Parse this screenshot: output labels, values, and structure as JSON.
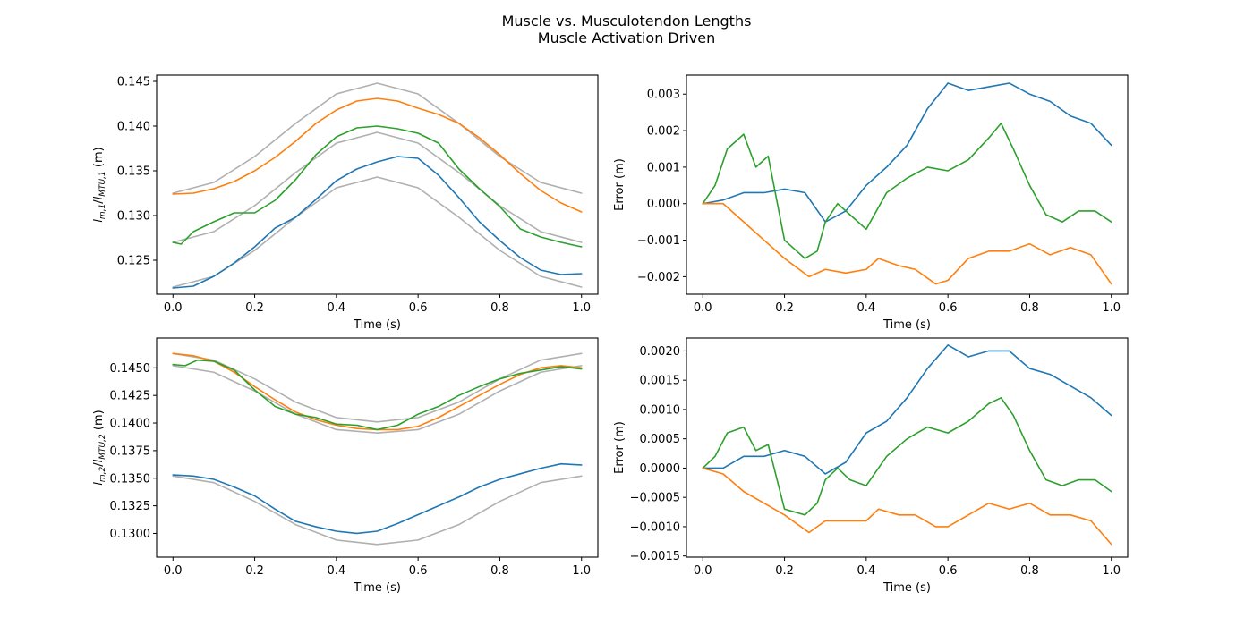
{
  "figure": {
    "title_line1": "Muscle vs. Musculotendon Lengths",
    "title_line2": "Muscle Activation Driven"
  },
  "colors": {
    "blue": "#1f77b4",
    "orange": "#ff7f0e",
    "green": "#2ca02c",
    "gray": "#b0b0b0"
  },
  "chart_data": [
    {
      "id": "len1",
      "type": "line",
      "xlabel": "Time (s)",
      "ylabel": "l_{m,1}/l_{MTU,1} (m)",
      "xlim": [
        -0.04,
        1.04
      ],
      "ylim": [
        0.1212,
        0.1457
      ],
      "xticks": [
        0.0,
        0.2,
        0.4,
        0.6,
        0.8,
        1.0
      ],
      "yticks": [
        0.125,
        0.13,
        0.135,
        0.14,
        0.145
      ],
      "ytick_decimals": 3,
      "grid": false,
      "series": [
        {
          "color": "gray",
          "x": [
            0.0,
            0.1,
            0.2,
            0.3,
            0.4,
            0.5,
            0.6,
            0.7,
            0.8,
            0.9,
            1.0
          ],
          "y": [
            0.1325,
            0.1337,
            0.1366,
            0.1403,
            0.1436,
            0.1448,
            0.1436,
            0.1403,
            0.1366,
            0.1337,
            0.1325
          ]
        },
        {
          "color": "gray",
          "x": [
            0.0,
            0.1,
            0.2,
            0.3,
            0.4,
            0.5,
            0.6,
            0.7,
            0.8,
            0.9,
            1.0
          ],
          "y": [
            0.127,
            0.1282,
            0.1311,
            0.1348,
            0.1381,
            0.1393,
            0.1381,
            0.1348,
            0.1311,
            0.1282,
            0.127
          ]
        },
        {
          "color": "gray",
          "x": [
            0.0,
            0.1,
            0.2,
            0.3,
            0.4,
            0.5,
            0.6,
            0.7,
            0.8,
            0.9,
            1.0
          ],
          "y": [
            0.122,
            0.1232,
            0.1261,
            0.1298,
            0.1331,
            0.1343,
            0.1331,
            0.1298,
            0.1261,
            0.1232,
            0.122
          ]
        },
        {
          "color": "orange",
          "x": [
            0.0,
            0.05,
            0.1,
            0.15,
            0.2,
            0.25,
            0.3,
            0.35,
            0.4,
            0.45,
            0.5,
            0.55,
            0.6,
            0.65,
            0.7,
            0.75,
            0.8,
            0.85,
            0.9,
            0.95,
            1.0
          ],
          "y": [
            0.1324,
            0.1325,
            0.133,
            0.1338,
            0.135,
            0.1365,
            0.1383,
            0.1403,
            0.1418,
            0.1428,
            0.1431,
            0.1428,
            0.142,
            0.1413,
            0.1403,
            0.1387,
            0.1368,
            0.1347,
            0.1328,
            0.1314,
            0.1304
          ]
        },
        {
          "color": "green",
          "x": [
            0.0,
            0.02,
            0.05,
            0.1,
            0.15,
            0.2,
            0.25,
            0.3,
            0.35,
            0.4,
            0.45,
            0.5,
            0.55,
            0.6,
            0.65,
            0.7,
            0.75,
            0.8,
            0.85,
            0.9,
            0.95,
            1.0
          ],
          "y": [
            0.127,
            0.1268,
            0.1282,
            0.1293,
            0.1303,
            0.1303,
            0.1317,
            0.134,
            0.1368,
            0.1388,
            0.1398,
            0.14,
            0.1397,
            0.1392,
            0.1381,
            0.1352,
            0.133,
            0.131,
            0.1285,
            0.1276,
            0.127,
            0.1265
          ]
        },
        {
          "color": "blue",
          "x": [
            0.0,
            0.05,
            0.1,
            0.15,
            0.2,
            0.25,
            0.3,
            0.35,
            0.4,
            0.45,
            0.5,
            0.55,
            0.6,
            0.65,
            0.7,
            0.75,
            0.8,
            0.85,
            0.9,
            0.95,
            1.0
          ],
          "y": [
            0.1219,
            0.1221,
            0.1232,
            0.1247,
            0.1265,
            0.1286,
            0.1298,
            0.1318,
            0.1339,
            0.1352,
            0.136,
            0.1366,
            0.1364,
            0.1345,
            0.132,
            0.1293,
            0.1272,
            0.1253,
            0.1239,
            0.1234,
            0.1235
          ]
        }
      ]
    },
    {
      "id": "err1",
      "type": "line",
      "xlabel": "Time (s)",
      "ylabel": "Error (m)",
      "xlim": [
        -0.04,
        1.04
      ],
      "ylim": [
        -0.00248,
        0.00352
      ],
      "xticks": [
        0.0,
        0.2,
        0.4,
        0.6,
        0.8,
        1.0
      ],
      "yticks": [
        -0.002,
        -0.001,
        0.0,
        0.001,
        0.002,
        0.003
      ],
      "ytick_decimals": 3,
      "grid": false,
      "series": [
        {
          "color": "blue",
          "x": [
            0.0,
            0.05,
            0.1,
            0.15,
            0.2,
            0.25,
            0.3,
            0.35,
            0.4,
            0.45,
            0.5,
            0.55,
            0.6,
            0.65,
            0.7,
            0.75,
            0.8,
            0.85,
            0.9,
            0.95,
            1.0
          ],
          "y": [
            0.0,
            0.0001,
            0.0003,
            0.0003,
            0.0004,
            0.0003,
            -0.0005,
            -0.0002,
            0.0005,
            0.001,
            0.0016,
            0.0026,
            0.0033,
            0.0031,
            0.0032,
            0.0033,
            0.003,
            0.0028,
            0.0024,
            0.0022,
            0.0016
          ]
        },
        {
          "color": "green",
          "x": [
            0.0,
            0.03,
            0.06,
            0.1,
            0.13,
            0.16,
            0.2,
            0.25,
            0.28,
            0.3,
            0.33,
            0.36,
            0.4,
            0.45,
            0.5,
            0.55,
            0.6,
            0.65,
            0.7,
            0.73,
            0.76,
            0.8,
            0.84,
            0.88,
            0.92,
            0.96,
            1.0
          ],
          "y": [
            0.0,
            0.0005,
            0.0015,
            0.0019,
            0.001,
            0.0013,
            -0.001,
            -0.0015,
            -0.0013,
            -0.0005,
            0.0,
            -0.0003,
            -0.0007,
            0.0003,
            0.0007,
            0.001,
            0.0009,
            0.0012,
            0.0018,
            0.0022,
            0.0015,
            0.0005,
            -0.0003,
            -0.0005,
            -0.0002,
            -0.0002,
            -0.0005
          ]
        },
        {
          "color": "orange",
          "x": [
            0.0,
            0.05,
            0.1,
            0.15,
            0.2,
            0.26,
            0.3,
            0.35,
            0.4,
            0.43,
            0.48,
            0.52,
            0.57,
            0.6,
            0.65,
            0.7,
            0.75,
            0.8,
            0.85,
            0.9,
            0.95,
            1.0
          ],
          "y": [
            0.0,
            0.0,
            -0.0005,
            -0.001,
            -0.0015,
            -0.002,
            -0.0018,
            -0.0019,
            -0.0018,
            -0.0015,
            -0.0017,
            -0.0018,
            -0.0022,
            -0.0021,
            -0.0015,
            -0.0013,
            -0.0013,
            -0.0011,
            -0.0014,
            -0.0012,
            -0.0014,
            -0.0022
          ]
        }
      ]
    },
    {
      "id": "len2",
      "type": "line",
      "xlabel": "Time (s)",
      "ylabel": "l_{m,2}/l_{MTU,2} (m)",
      "xlim": [
        -0.04,
        1.04
      ],
      "ylim": [
        0.12785,
        0.1477
      ],
      "xticks": [
        0.0,
        0.2,
        0.4,
        0.6,
        0.8,
        1.0
      ],
      "yticks": [
        0.13,
        0.1325,
        0.135,
        0.1375,
        0.14,
        0.1425,
        0.145
      ],
      "ytick_decimals": 4,
      "grid": false,
      "series": [
        {
          "color": "gray",
          "x": [
            0.0,
            0.1,
            0.2,
            0.3,
            0.4,
            0.5,
            0.6,
            0.7,
            0.8,
            0.9,
            1.0
          ],
          "y": [
            0.1463,
            0.1457,
            0.144,
            0.1419,
            0.1405,
            0.1401,
            0.1405,
            0.1419,
            0.144,
            0.1457,
            0.1463
          ]
        },
        {
          "color": "gray",
          "x": [
            0.0,
            0.1,
            0.2,
            0.3,
            0.4,
            0.5,
            0.6,
            0.7,
            0.8,
            0.9,
            1.0
          ],
          "y": [
            0.1452,
            0.1446,
            0.1429,
            0.1408,
            0.1394,
            0.1391,
            0.1394,
            0.1408,
            0.1429,
            0.1446,
            0.1452
          ]
        },
        {
          "color": "gray",
          "x": [
            0.0,
            0.1,
            0.2,
            0.3,
            0.4,
            0.5,
            0.6,
            0.7,
            0.8,
            0.9,
            1.0
          ],
          "y": [
            0.1352,
            0.1346,
            0.1329,
            0.1308,
            0.1294,
            0.129,
            0.1294,
            0.1308,
            0.1329,
            0.1346,
            0.1352
          ]
        },
        {
          "color": "orange",
          "x": [
            0.0,
            0.05,
            0.1,
            0.15,
            0.2,
            0.25,
            0.3,
            0.35,
            0.4,
            0.45,
            0.5,
            0.55,
            0.6,
            0.65,
            0.7,
            0.75,
            0.8,
            0.85,
            0.9,
            0.95,
            1.0
          ],
          "y": [
            0.1463,
            0.1461,
            0.1456,
            0.1446,
            0.1433,
            0.1421,
            0.141,
            0.1403,
            0.1398,
            0.1395,
            0.1394,
            0.1394,
            0.1397,
            0.1405,
            0.1415,
            0.1425,
            0.1435,
            0.1444,
            0.145,
            0.1452,
            0.145
          ]
        },
        {
          "color": "green",
          "x": [
            0.0,
            0.03,
            0.06,
            0.1,
            0.15,
            0.2,
            0.25,
            0.3,
            0.35,
            0.4,
            0.45,
            0.5,
            0.55,
            0.6,
            0.65,
            0.7,
            0.75,
            0.8,
            0.85,
            0.9,
            0.95,
            1.0
          ],
          "y": [
            0.1453,
            0.1452,
            0.1457,
            0.1456,
            0.1448,
            0.143,
            0.1415,
            0.1408,
            0.1405,
            0.1399,
            0.1398,
            0.1394,
            0.1398,
            0.1408,
            0.1415,
            0.1425,
            0.1433,
            0.144,
            0.1445,
            0.1448,
            0.1451,
            0.1449
          ]
        },
        {
          "color": "blue",
          "x": [
            0.0,
            0.05,
            0.1,
            0.15,
            0.2,
            0.25,
            0.3,
            0.35,
            0.4,
            0.45,
            0.5,
            0.55,
            0.6,
            0.65,
            0.7,
            0.75,
            0.8,
            0.85,
            0.9,
            0.95,
            1.0
          ],
          "y": [
            0.1353,
            0.1352,
            0.1349,
            0.1342,
            0.1334,
            0.1322,
            0.1311,
            0.1306,
            0.1302,
            0.13,
            0.1302,
            0.1309,
            0.1317,
            0.1325,
            0.1333,
            0.1342,
            0.1349,
            0.1354,
            0.1359,
            0.1363,
            0.1362
          ]
        }
      ]
    },
    {
      "id": "err2",
      "type": "line",
      "xlabel": "Time (s)",
      "ylabel": "Error (m)",
      "xlim": [
        -0.04,
        1.04
      ],
      "ylim": [
        -0.00152,
        0.00222
      ],
      "xticks": [
        0.0,
        0.2,
        0.4,
        0.6,
        0.8,
        1.0
      ],
      "yticks": [
        -0.0015,
        -0.001,
        -0.0005,
        0.0,
        0.0005,
        0.001,
        0.0015,
        0.002
      ],
      "ytick_decimals": 4,
      "grid": false,
      "series": [
        {
          "color": "blue",
          "x": [
            0.0,
            0.05,
            0.1,
            0.15,
            0.2,
            0.25,
            0.3,
            0.35,
            0.4,
            0.45,
            0.5,
            0.55,
            0.6,
            0.65,
            0.7,
            0.75,
            0.8,
            0.85,
            0.9,
            0.95,
            1.0
          ],
          "y": [
            0.0,
            0.0,
            0.0002,
            0.0002,
            0.0003,
            0.0002,
            -0.0001,
            0.0001,
            0.0006,
            0.0008,
            0.0012,
            0.0017,
            0.0021,
            0.0019,
            0.002,
            0.002,
            0.0017,
            0.0016,
            0.0014,
            0.0012,
            0.0009
          ]
        },
        {
          "color": "green",
          "x": [
            0.0,
            0.03,
            0.06,
            0.1,
            0.13,
            0.16,
            0.2,
            0.25,
            0.28,
            0.3,
            0.33,
            0.36,
            0.4,
            0.45,
            0.5,
            0.55,
            0.6,
            0.65,
            0.7,
            0.73,
            0.76,
            0.8,
            0.84,
            0.88,
            0.92,
            0.96,
            1.0
          ],
          "y": [
            0.0,
            0.0002,
            0.0006,
            0.0007,
            0.0003,
            0.0004,
            -0.0007,
            -0.0008,
            -0.0006,
            -0.0002,
            0.0,
            -0.0002,
            -0.0003,
            0.0002,
            0.0005,
            0.0007,
            0.0006,
            0.0008,
            0.0011,
            0.0012,
            0.0009,
            0.0003,
            -0.0002,
            -0.0003,
            -0.0002,
            -0.0002,
            -0.0004
          ]
        },
        {
          "color": "orange",
          "x": [
            0.0,
            0.05,
            0.1,
            0.15,
            0.2,
            0.26,
            0.3,
            0.35,
            0.4,
            0.43,
            0.48,
            0.52,
            0.57,
            0.6,
            0.65,
            0.7,
            0.75,
            0.8,
            0.85,
            0.9,
            0.95,
            1.0
          ],
          "y": [
            0.0,
            -0.0001,
            -0.0004,
            -0.0006,
            -0.0008,
            -0.0011,
            -0.0009,
            -0.0009,
            -0.0009,
            -0.0007,
            -0.0008,
            -0.0008,
            -0.001,
            -0.001,
            -0.0008,
            -0.0006,
            -0.0007,
            -0.0006,
            -0.0008,
            -0.0008,
            -0.0009,
            -0.0013
          ]
        }
      ]
    }
  ]
}
